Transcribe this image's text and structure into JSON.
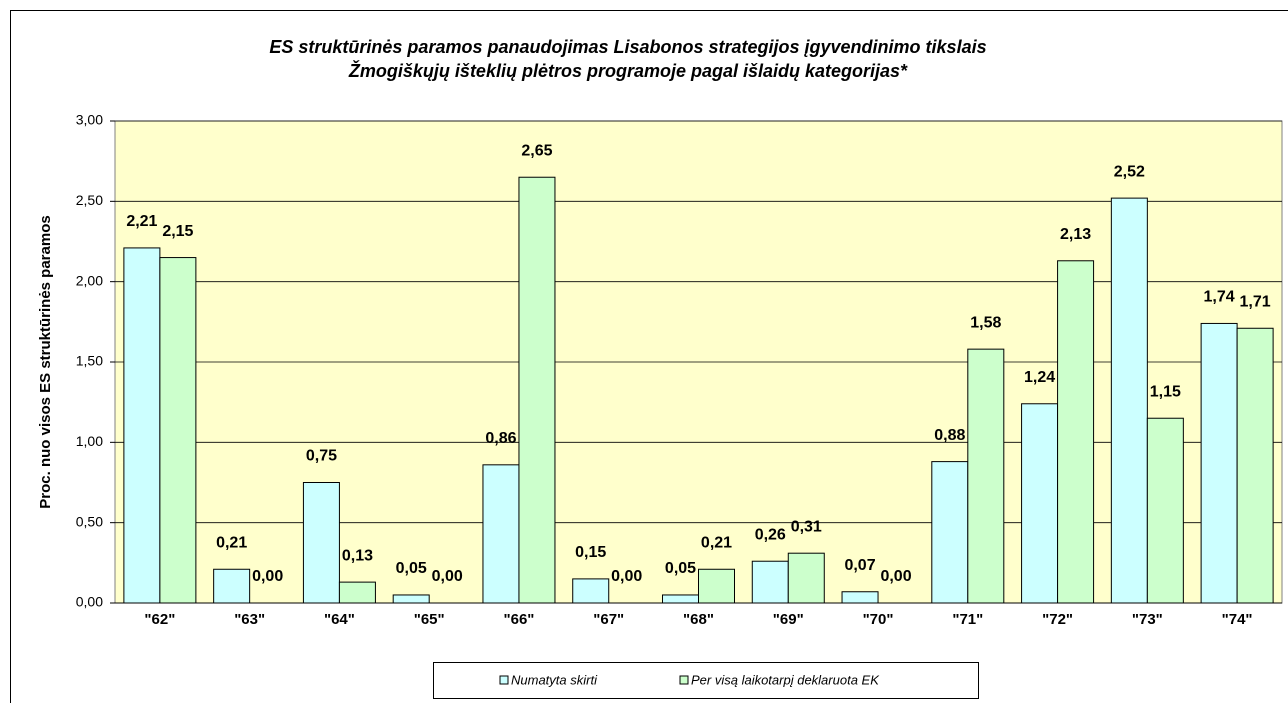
{
  "chart_data": {
    "type": "bar",
    "title": [
      "ES struktūrinės paramos panaudojimas Lisabonos strategijos įgyvendinimo tikslais",
      "Žmogiškųjų išteklių plėtros programoje pagal išlaidų kategorijas*"
    ],
    "y_label": "Proc. nuo visos ES struktūrinės paramos",
    "categories": [
      "\"62\"",
      "\"63\"",
      "\"64\"",
      "\"65\"",
      "\"66\"",
      "\"67\"",
      "\"68\"",
      "\"69\"",
      "\"70\"",
      "\"71\"",
      "\"72\"",
      "\"73\"",
      "\"74\""
    ],
    "series": [
      {
        "name": "Numatyta skirti",
        "color": "#ccffff",
        "values": [
          2.21,
          0.21,
          0.75,
          0.05,
          0.86,
          0.15,
          0.05,
          0.26,
          0.07,
          0.88,
          1.24,
          2.52,
          1.74
        ],
        "value_labels": [
          "2,21",
          "0,21",
          "0,75",
          "0,05",
          "0,86",
          "0,15",
          "0,05",
          "0,26",
          "0,07",
          "0,88",
          "1,24",
          "2,52",
          "1,74"
        ]
      },
      {
        "name": "Per visą laikotarpį deklaruota EK",
        "color": "#ccffcc",
        "values": [
          2.15,
          0.0,
          0.13,
          0.0,
          2.65,
          0.0,
          0.21,
          0.31,
          0.0,
          1.58,
          2.13,
          1.15,
          1.71
        ],
        "value_labels": [
          "2,15",
          "0,00",
          "0,13",
          "0,00",
          "2,65",
          "0,00",
          "0,21",
          "0,31",
          "0,00",
          "1,58",
          "2,13",
          "1,15",
          "1,71"
        ]
      }
    ],
    "ylim": [
      0,
      3
    ],
    "yticks": [
      {
        "value": 0,
        "label": "0,00"
      },
      {
        "value": 0.5,
        "label": "0,50"
      },
      {
        "value": 1,
        "label": "1,00"
      },
      {
        "value": 1.5,
        "label": "1,50"
      },
      {
        "value": 2,
        "label": "2,00"
      },
      {
        "value": 2.5,
        "label": "2,50"
      },
      {
        "value": 3,
        "label": "3,00"
      }
    ],
    "grid": true,
    "plot_background": "#ffffcc"
  }
}
